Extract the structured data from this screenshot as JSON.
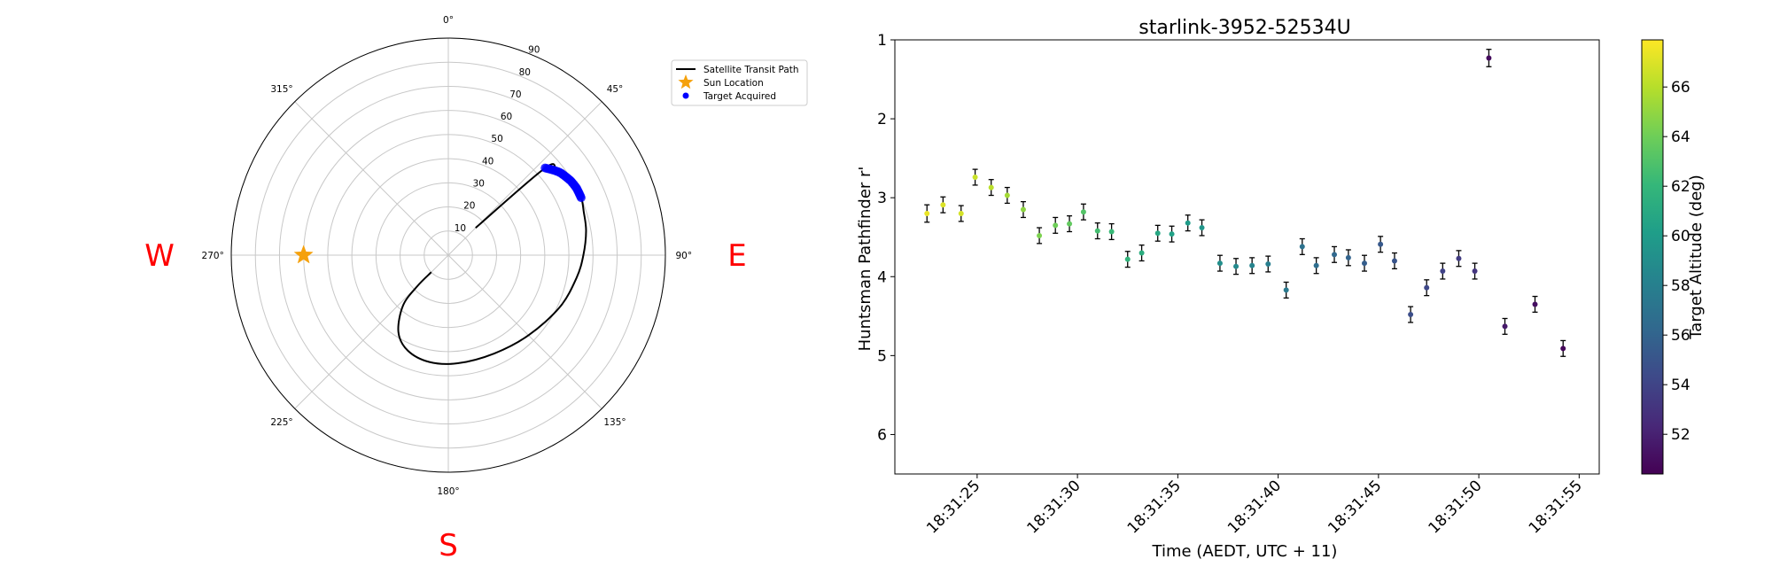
{
  "polar": {
    "cardinals": [
      "W",
      "E",
      "S"
    ],
    "angle_ticks": [
      "0°",
      "45°",
      "90°",
      "135°",
      "180°",
      "225°",
      "270°",
      "315°"
    ],
    "angle_tick_values": [
      0,
      45,
      90,
      135,
      180,
      225,
      270,
      315
    ],
    "radial_ticks": [
      "10",
      "20",
      "30",
      "40",
      "50",
      "60",
      "70",
      "80",
      "90"
    ],
    "radial_tick_values": [
      10,
      20,
      30,
      40,
      50,
      60,
      70,
      80,
      90
    ],
    "rmax": 90,
    "orientation": "north-up, east-right",
    "legend": {
      "placement": "upper-right",
      "path_label": "Satellite Transit Path",
      "sun_label": "Sun Location",
      "target_label": "Target Acquired"
    },
    "sun": {
      "az": 270,
      "r": 60
    },
    "path_rmin": 0,
    "path": [
      {
        "az": 45,
        "r": 16
      },
      {
        "az": 48,
        "r": 54
      },
      {
        "az": 52,
        "r": 57
      },
      {
        "az": 57,
        "r": 59
      },
      {
        "az": 62,
        "r": 60
      },
      {
        "az": 67,
        "r": 60
      },
      {
        "az": 72,
        "r": 59
      },
      {
        "az": 80,
        "r": 58
      },
      {
        "az": 90,
        "r": 56
      },
      {
        "az": 100,
        "r": 54
      },
      {
        "az": 115,
        "r": 51
      },
      {
        "az": 135,
        "r": 47
      },
      {
        "az": 155,
        "r": 45
      },
      {
        "az": 175,
        "r": 45
      },
      {
        "az": 190,
        "r": 45
      },
      {
        "az": 203,
        "r": 43
      },
      {
        "az": 213,
        "r": 38
      },
      {
        "az": 222,
        "r": 28
      },
      {
        "az": 225,
        "r": 18
      },
      {
        "az": 225,
        "r": 10
      }
    ],
    "targets": [
      {
        "az": 48,
        "r": 54
      },
      {
        "az": 48.6,
        "r": 54.4
      },
      {
        "az": 49.2,
        "r": 54.8
      },
      {
        "az": 49.8,
        "r": 55.2
      },
      {
        "az": 50.4,
        "r": 55.6
      },
      {
        "az": 51,
        "r": 56
      },
      {
        "az": 51.6,
        "r": 56.4
      },
      {
        "az": 52.2,
        "r": 56.8
      },
      {
        "az": 52.8,
        "r": 57.2
      },
      {
        "az": 53.4,
        "r": 57.5
      },
      {
        "az": 54,
        "r": 57.8
      },
      {
        "az": 54.6,
        "r": 58
      },
      {
        "az": 55.2,
        "r": 58.2
      },
      {
        "az": 55.8,
        "r": 58.4
      },
      {
        "az": 56.4,
        "r": 58.6
      },
      {
        "az": 57,
        "r": 58.8
      },
      {
        "az": 57.6,
        "r": 59
      },
      {
        "az": 58.2,
        "r": 59.2
      },
      {
        "az": 58.8,
        "r": 59.4
      },
      {
        "az": 59.4,
        "r": 59.5
      },
      {
        "az": 60,
        "r": 59.6
      },
      {
        "az": 60.6,
        "r": 59.7
      },
      {
        "az": 61.2,
        "r": 59.8
      },
      {
        "az": 61.8,
        "r": 59.9
      },
      {
        "az": 62.4,
        "r": 60
      },
      {
        "az": 63,
        "r": 60
      },
      {
        "az": 63.6,
        "r": 60
      },
      {
        "az": 64.2,
        "r": 60
      },
      {
        "az": 64.8,
        "r": 60
      },
      {
        "az": 65.4,
        "r": 60
      },
      {
        "az": 66,
        "r": 60
      },
      {
        "az": 66.6,
        "r": 60
      }
    ]
  },
  "chart_data": {
    "type": "scatter",
    "title": "starlink-3952-52534U",
    "xlabel": "Time (AEDT, UTC + 11)",
    "ylabel": "Huntsman Pathfinder r'",
    "colorbar_label": "Target Altitude (deg)",
    "x_ticks": [
      "18:31:25",
      "18:31:30",
      "18:31:35",
      "18:31:40",
      "18:31:45",
      "18:31:50",
      "18:31:55"
    ],
    "x_tick_values": [
      25,
      30,
      35,
      40,
      45,
      50,
      55
    ],
    "x_unit": "seconds after 18:31:00",
    "xlim": [
      20.9,
      56
    ],
    "y_ticks": [
      "1",
      "2",
      "3",
      "4",
      "5",
      "6"
    ],
    "y_tick_values": [
      1,
      2,
      3,
      4,
      5,
      6
    ],
    "ylim": [
      6.5,
      1
    ],
    "y_inverted": true,
    "colorbar_ticks": [
      "52",
      "54",
      "56",
      "58",
      "60",
      "62",
      "64",
      "66"
    ],
    "colorbar_tick_values": [
      52,
      54,
      56,
      58,
      60,
      62,
      64,
      66
    ],
    "clim": [
      50.4,
      67.9
    ],
    "colormap_stops": [
      "#440154",
      "#482878",
      "#3e4989",
      "#31688e",
      "#26828e",
      "#1f9e89",
      "#35b779",
      "#6ece58",
      "#b5de2b",
      "#fde725"
    ],
    "points": [
      {
        "x": 22.5,
        "y": 3.2,
        "err": 0.11,
        "alt": 67.4
      },
      {
        "x": 23.3,
        "y": 3.09,
        "err": 0.1,
        "alt": 67.0
      },
      {
        "x": 24.2,
        "y": 3.2,
        "err": 0.1,
        "alt": 66.8
      },
      {
        "x": 24.9,
        "y": 2.74,
        "err": 0.1,
        "alt": 66.5
      },
      {
        "x": 25.7,
        "y": 2.87,
        "err": 0.1,
        "alt": 66.1
      },
      {
        "x": 26.5,
        "y": 2.97,
        "err": 0.1,
        "alt": 65.5
      },
      {
        "x": 27.3,
        "y": 3.15,
        "err": 0.1,
        "alt": 64.9
      },
      {
        "x": 28.1,
        "y": 3.48,
        "err": 0.1,
        "alt": 64.4
      },
      {
        "x": 28.9,
        "y": 3.35,
        "err": 0.1,
        "alt": 64.0
      },
      {
        "x": 29.6,
        "y": 3.33,
        "err": 0.1,
        "alt": 63.6
      },
      {
        "x": 30.3,
        "y": 3.18,
        "err": 0.1,
        "alt": 63.1
      },
      {
        "x": 31.0,
        "y": 3.42,
        "err": 0.1,
        "alt": 62.6
      },
      {
        "x": 31.7,
        "y": 3.43,
        "err": 0.1,
        "alt": 62.2
      },
      {
        "x": 32.5,
        "y": 3.78,
        "err": 0.1,
        "alt": 61.8
      },
      {
        "x": 33.2,
        "y": 3.7,
        "err": 0.1,
        "alt": 61.3
      },
      {
        "x": 34.0,
        "y": 3.45,
        "err": 0.1,
        "alt": 60.8
      },
      {
        "x": 34.7,
        "y": 3.46,
        "err": 0.1,
        "alt": 60.4
      },
      {
        "x": 35.5,
        "y": 3.32,
        "err": 0.1,
        "alt": 60.0
      },
      {
        "x": 36.2,
        "y": 3.38,
        "err": 0.1,
        "alt": 59.6
      },
      {
        "x": 37.1,
        "y": 3.83,
        "err": 0.1,
        "alt": 59.1
      },
      {
        "x": 37.9,
        "y": 3.87,
        "err": 0.1,
        "alt": 58.7
      },
      {
        "x": 38.7,
        "y": 3.86,
        "err": 0.1,
        "alt": 58.3
      },
      {
        "x": 39.5,
        "y": 3.84,
        "err": 0.1,
        "alt": 57.9
      },
      {
        "x": 40.4,
        "y": 4.17,
        "err": 0.1,
        "alt": 57.5
      },
      {
        "x": 41.2,
        "y": 3.62,
        "err": 0.1,
        "alt": 57.0
      },
      {
        "x": 41.9,
        "y": 3.86,
        "err": 0.1,
        "alt": 56.7
      },
      {
        "x": 42.8,
        "y": 3.72,
        "err": 0.1,
        "alt": 56.3
      },
      {
        "x": 43.5,
        "y": 3.76,
        "err": 0.1,
        "alt": 56.0
      },
      {
        "x": 44.3,
        "y": 3.83,
        "err": 0.1,
        "alt": 55.6
      },
      {
        "x": 45.1,
        "y": 3.59,
        "err": 0.1,
        "alt": 55.3
      },
      {
        "x": 45.8,
        "y": 3.8,
        "err": 0.1,
        "alt": 55.0
      },
      {
        "x": 46.6,
        "y": 4.48,
        "err": 0.1,
        "alt": 54.6
      },
      {
        "x": 47.4,
        "y": 4.14,
        "err": 0.1,
        "alt": 54.2
      },
      {
        "x": 48.2,
        "y": 3.93,
        "err": 0.1,
        "alt": 53.9
      },
      {
        "x": 49.0,
        "y": 3.77,
        "err": 0.1,
        "alt": 53.5
      },
      {
        "x": 49.8,
        "y": 3.93,
        "err": 0.1,
        "alt": 53.1
      },
      {
        "x": 50.5,
        "y": 1.23,
        "err": 0.11,
        "alt": 50.9
      },
      {
        "x": 51.3,
        "y": 4.63,
        "err": 0.1,
        "alt": 51.6
      },
      {
        "x": 52.8,
        "y": 4.35,
        "err": 0.1,
        "alt": 51.1
      },
      {
        "x": 54.2,
        "y": 4.91,
        "err": 0.1,
        "alt": 50.7
      }
    ]
  }
}
